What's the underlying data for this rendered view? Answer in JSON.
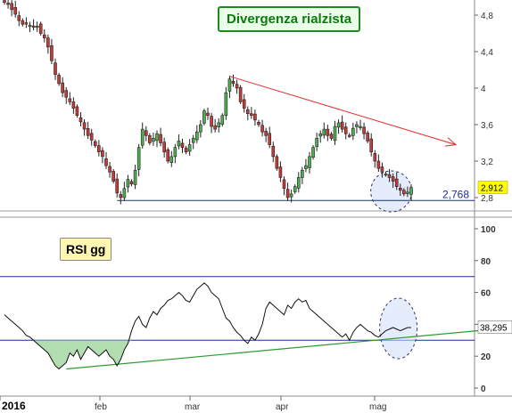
{
  "title": "Divergenza rialzista",
  "colors": {
    "up": "#4caf50",
    "down": "#c73a3a",
    "support": "#1a2a9a",
    "resistance": "#e03030",
    "rsi_trend": "#2e9a2e",
    "rsi_fill": "#9ed49e",
    "highlight": "#cfdcf8",
    "price_badge": "#ffff00"
  },
  "chart_data": [
    {
      "type": "candlestick",
      "name": "price",
      "x_ticks": [
        "2016",
        "feb",
        "mar",
        "apr",
        "mag"
      ],
      "y_ticks": [
        "2,8",
        "3,2",
        "3,6",
        "4",
        "4,4",
        "4,8"
      ],
      "ylim": [
        2.75,
        4.95
      ],
      "last_price_label": "2,912",
      "support_label": "2,768",
      "support_level": 2.768,
      "resistance_line": {
        "from": {
          "day": 62,
          "value": 4.13
        },
        "to": {
          "day": 121,
          "value": 3.38
        }
      },
      "highlight_day": 107,
      "days": [
        0,
        112
      ],
      "close": [
        4.94,
        4.92,
        4.86,
        4.81,
        4.74,
        4.7,
        4.71,
        4.69,
        4.67,
        4.68,
        4.6,
        4.55,
        4.45,
        4.3,
        4.15,
        4.05,
        3.95,
        3.9,
        3.85,
        3.78,
        3.7,
        3.63,
        3.55,
        3.48,
        3.43,
        3.37,
        3.3,
        3.25,
        3.15,
        3.08,
        2.98,
        2.85,
        2.8,
        2.9,
        3.0,
        2.95,
        3.1,
        3.35,
        3.55,
        3.48,
        3.4,
        3.45,
        3.5,
        3.4,
        3.3,
        3.2,
        3.25,
        3.35,
        3.42,
        3.35,
        3.3,
        3.38,
        3.45,
        3.52,
        3.6,
        3.75,
        3.7,
        3.58,
        3.55,
        3.62,
        3.7,
        3.95,
        4.1,
        4.05,
        4.0,
        3.85,
        3.78,
        3.72,
        3.7,
        3.65,
        3.6,
        3.52,
        3.48,
        3.38,
        3.25,
        3.12,
        3.02,
        2.9,
        2.8,
        2.84,
        2.92,
        3.02,
        3.1,
        3.15,
        3.25,
        3.35,
        3.45,
        3.5,
        3.55,
        3.48,
        3.45,
        3.58,
        3.62,
        3.55,
        3.5,
        3.48,
        3.56,
        3.6,
        3.58,
        3.5,
        3.42,
        3.3,
        3.2,
        3.12,
        3.08,
        3.06,
        3.02,
        2.98,
        2.92,
        2.88,
        2.84,
        2.86,
        2.91
      ]
    },
    {
      "type": "line",
      "name": "RSI",
      "label": "RSI gg",
      "y_ticks": [
        "0",
        "20",
        "40",
        "60",
        "80",
        "100"
      ],
      "ylim": [
        -3,
        105
      ],
      "levels": [
        30,
        70
      ],
      "last_value_label": "38,295",
      "trendline": {
        "from": {
          "day": 17,
          "value": 12
        },
        "to": {
          "day": 138,
          "value": 38
        }
      },
      "highlight_day": 107,
      "days": [
        0,
        112
      ],
      "values": [
        46,
        44,
        42,
        40,
        38,
        36,
        33,
        32,
        30,
        28,
        26,
        24,
        22,
        18,
        14,
        12,
        14,
        16,
        22,
        20,
        24,
        18,
        22,
        26,
        24,
        22,
        20,
        22,
        24,
        20,
        18,
        14,
        18,
        24,
        28,
        36,
        42,
        45,
        40,
        38,
        44,
        48,
        46,
        50,
        52,
        55,
        56,
        58,
        60,
        58,
        55,
        54,
        58,
        62,
        64,
        66,
        64,
        60,
        58,
        56,
        50,
        44,
        42,
        38,
        35,
        33,
        30,
        28,
        32,
        30,
        34,
        40,
        50,
        54,
        52,
        50,
        48,
        46,
        52,
        50,
        54,
        56,
        54,
        55,
        50,
        48,
        46,
        44,
        42,
        40,
        38,
        36,
        34,
        32,
        34,
        30,
        35,
        38,
        40,
        38,
        36,
        35,
        33,
        32,
        34,
        36,
        37,
        38,
        37,
        36,
        37,
        38,
        38
      ]
    }
  ]
}
